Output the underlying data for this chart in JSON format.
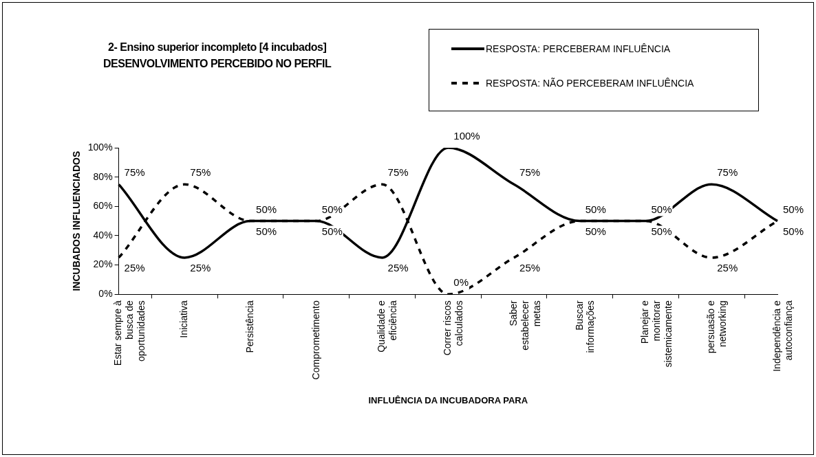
{
  "chart_data": {
    "type": "line",
    "title": "2- Ensino superior incompleto [4 incubados]",
    "subtitle": "DESENVOLVIMENTO PERCEBIDO NO PERFIL",
    "xlabel": "INFLUÊNCIA DA INCUBADORA PARA",
    "ylabel": "INCUBADOS INFLUENCIADOS",
    "categories": [
      "Estar sempre à busca de oportunidades",
      "Iniciativa",
      "Persistência",
      "Comprometimento",
      "Qualidade e eficiência",
      "Correr riscos calculados",
      "Saber estabelecer metas",
      "Buscar informações",
      "Planejar e monitorar sistemicamente",
      "persuasão e networking",
      "Independência e autoconfiança"
    ],
    "series": [
      {
        "name": "RESPOSTA: PERCEBERAM INFLUÊNCIA",
        "color": "#000000",
        "line_style": "solid",
        "values": [
          75,
          25,
          50,
          50,
          25,
          100,
          75,
          50,
          50,
          75,
          50
        ],
        "value_labels": [
          "75%",
          "25%",
          "50%",
          "50%",
          "25%",
          "100%",
          "75%",
          "50%",
          "50%",
          "75%",
          "50%"
        ]
      },
      {
        "name": "RESPOSTA: NÃO PERCEBERAM INFLUÊNCIA",
        "color": "#000000",
        "line_style": "dashed",
        "values": [
          25,
          75,
          50,
          50,
          75,
          0,
          25,
          50,
          50,
          25,
          50
        ],
        "value_labels": [
          "25%",
          "75%",
          "50%",
          "50%",
          "75%",
          "0%",
          "25%",
          "50%",
          "50%",
          "25%",
          "50%"
        ]
      }
    ],
    "ylim": [
      0,
      100
    ],
    "yticks": [
      {
        "value": 0,
        "label": "0%"
      },
      {
        "value": 20,
        "label": "20%"
      },
      {
        "value": 40,
        "label": "40%"
      },
      {
        "value": 60,
        "label": "60%"
      },
      {
        "value": 80,
        "label": "80%"
      },
      {
        "value": 100,
        "label": "100%"
      }
    ],
    "grid": false,
    "legend": "top right",
    "marker": "none"
  }
}
